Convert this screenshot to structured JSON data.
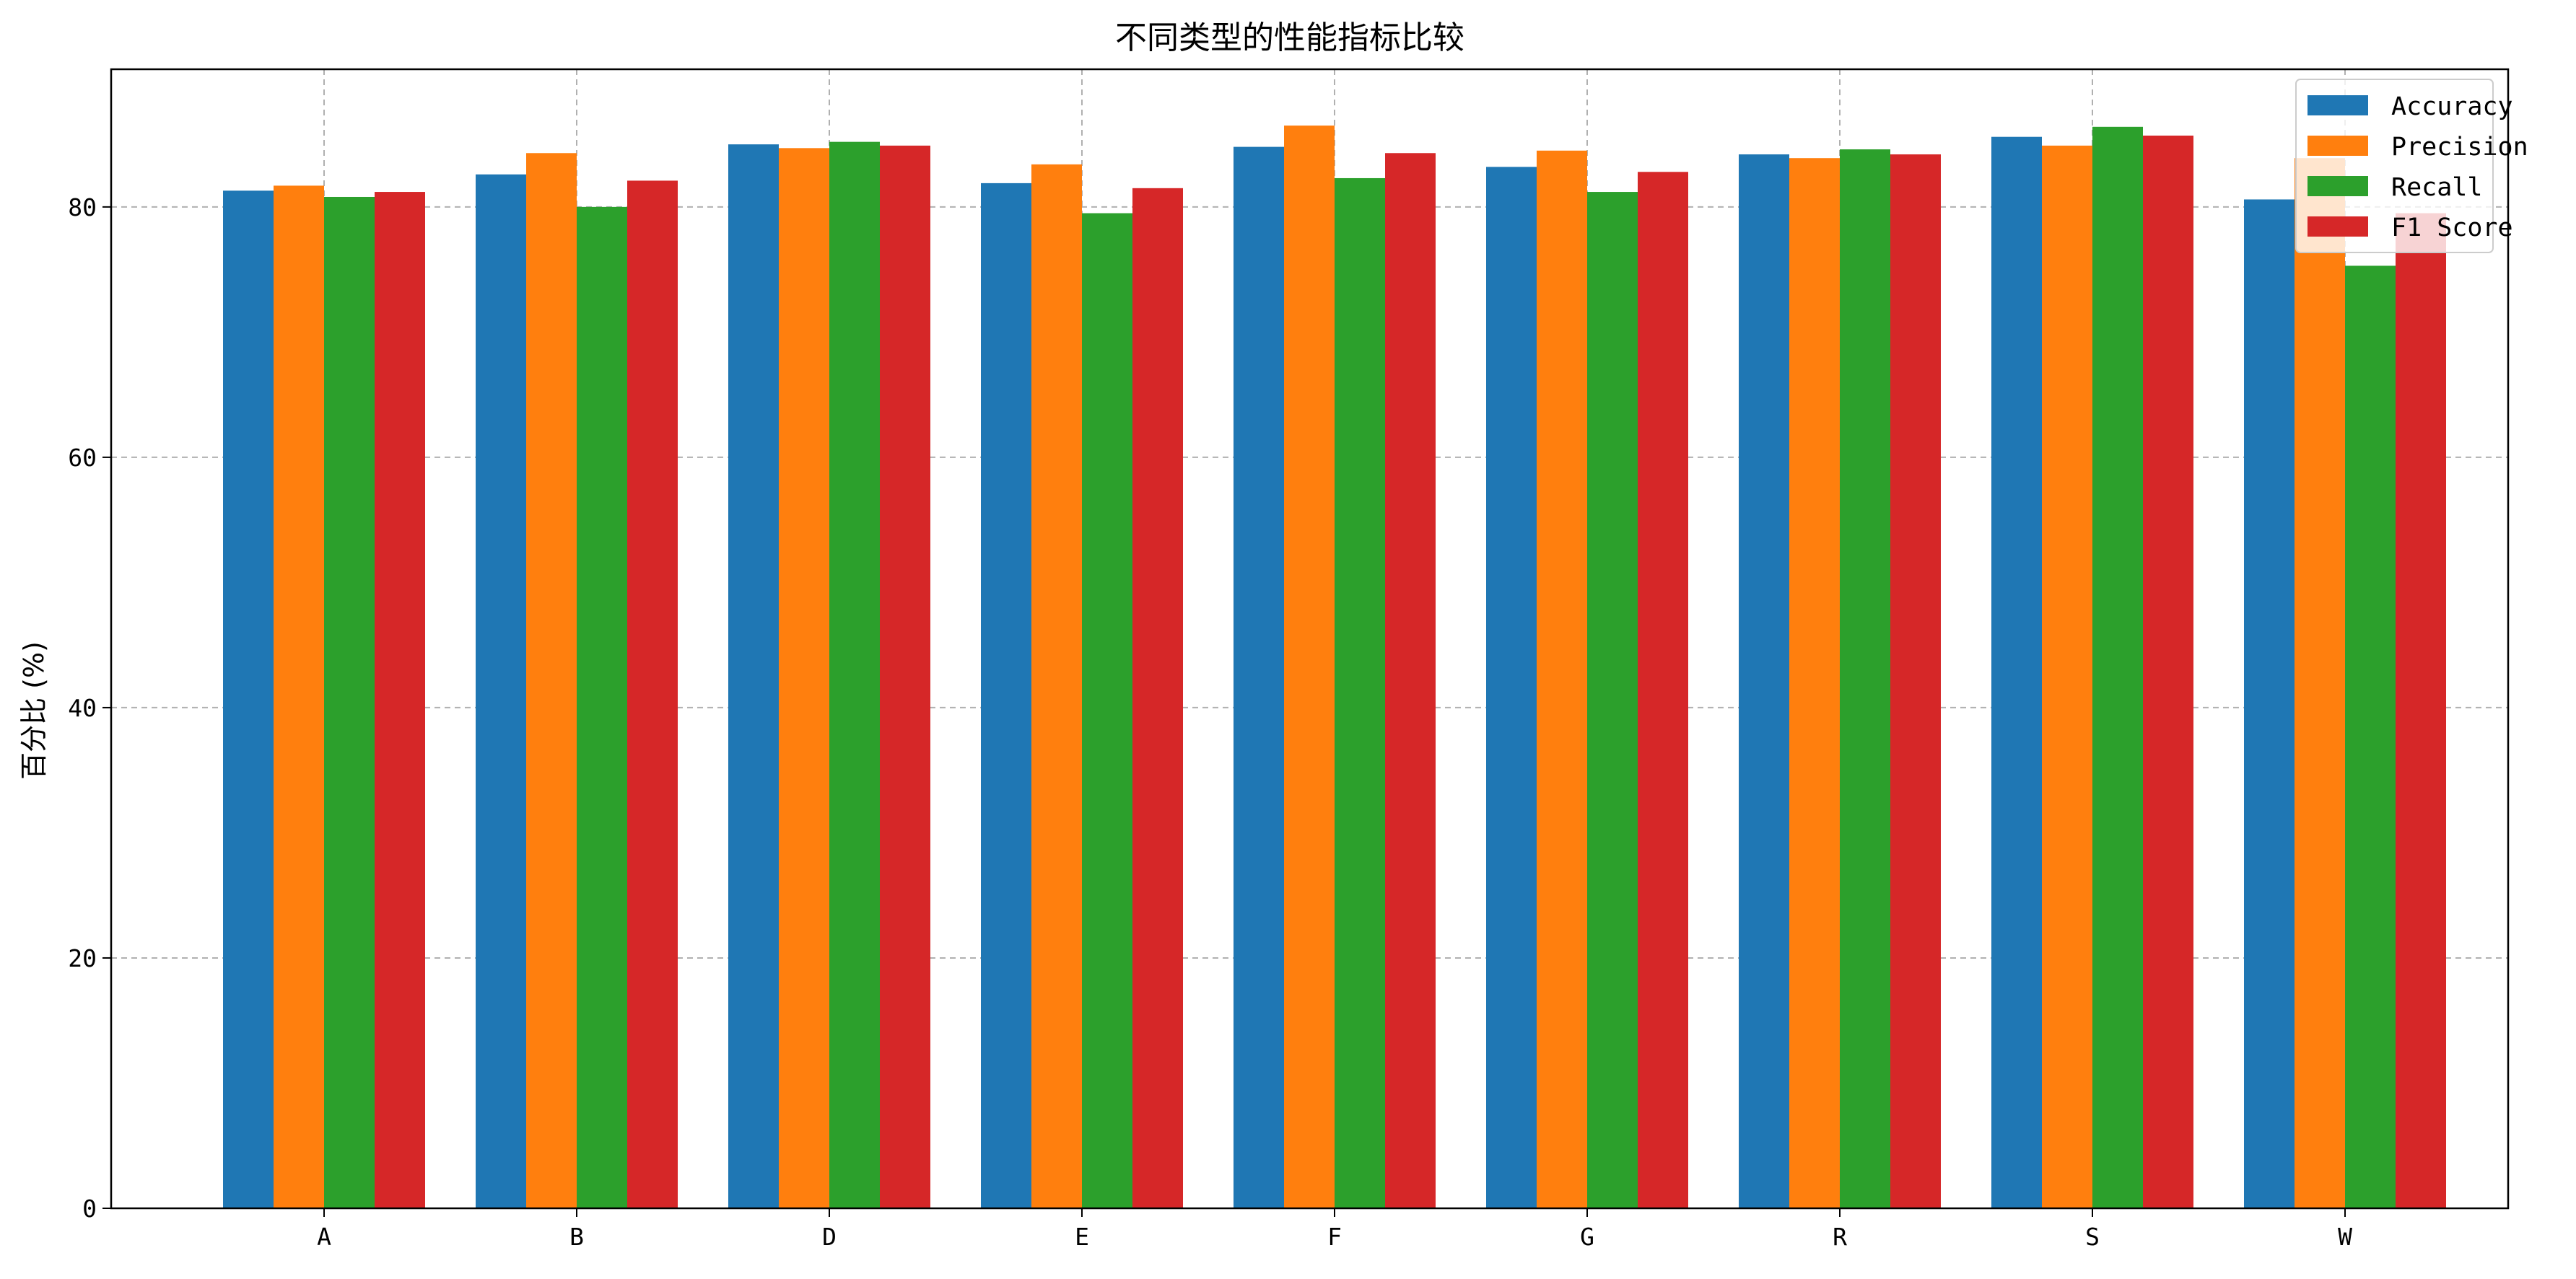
{
  "chart_data": {
    "type": "bar",
    "title": "不同类型的性能指标比较",
    "xlabel": "",
    "ylabel": "百分比 (%)",
    "categories": [
      "A",
      "B",
      "D",
      "E",
      "F",
      "G",
      "R",
      "S",
      "W"
    ],
    "ylim": [
      0,
      91
    ],
    "yticks": [
      0,
      20,
      40,
      60,
      80
    ],
    "grid": true,
    "legend_position": "top-right",
    "series": [
      {
        "name": "Accuracy",
        "color": "#1f77b4",
        "values": [
          81.3,
          82.6,
          85.0,
          81.9,
          84.8,
          83.2,
          84.2,
          85.6,
          80.6
        ]
      },
      {
        "name": "Precision",
        "color": "#ff7f0e",
        "values": [
          81.7,
          84.3,
          84.7,
          83.4,
          86.5,
          84.5,
          83.9,
          84.9,
          83.9
        ]
      },
      {
        "name": "Recall",
        "color": "#2ca02c",
        "values": [
          80.8,
          80.0,
          85.2,
          79.5,
          82.3,
          81.2,
          84.6,
          86.4,
          75.3
        ]
      },
      {
        "name": "F1 Score",
        "color": "#d62728",
        "values": [
          81.2,
          82.1,
          84.9,
          81.5,
          84.3,
          82.8,
          84.2,
          85.7,
          79.5
        ]
      }
    ]
  }
}
